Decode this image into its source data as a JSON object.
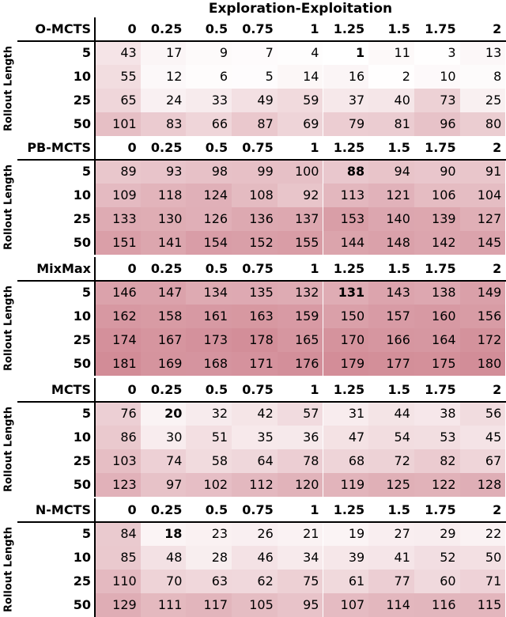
{
  "top_title": "Exploration-Exploitation",
  "y_axis_label": "Rollout Length",
  "chart_data": {
    "type": "heatmap",
    "x_title": "Exploration-Exploitation",
    "y_title": "Rollout Length",
    "columns": [
      "0",
      "0.25",
      "0.5",
      "0.75",
      "1",
      "1.25",
      "1.5",
      "1.75",
      "2"
    ],
    "rows": [
      "5",
      "10",
      "25",
      "50"
    ],
    "color_scale": {
      "min": 1,
      "max": 181,
      "low_color": "#ffffff",
      "high_color": "#d28c97"
    },
    "panels": [
      {
        "name": "O-MCTS",
        "values": [
          [
            43,
            17,
            9,
            7,
            4,
            1,
            11,
            3,
            13
          ],
          [
            55,
            12,
            6,
            5,
            14,
            16,
            2,
            10,
            8
          ],
          [
            65,
            24,
            33,
            49,
            59,
            37,
            40,
            73,
            25
          ],
          [
            101,
            83,
            66,
            87,
            69,
            79,
            81,
            96,
            80
          ]
        ],
        "bold": [
          [
            0,
            5
          ]
        ]
      },
      {
        "name": "PB-MCTS",
        "values": [
          [
            89,
            93,
            98,
            99,
            100,
            88,
            94,
            90,
            91
          ],
          [
            109,
            118,
            124,
            108,
            92,
            113,
            121,
            106,
            104
          ],
          [
            133,
            130,
            126,
            136,
            137,
            153,
            140,
            139,
            127
          ],
          [
            151,
            141,
            154,
            152,
            155,
            144,
            148,
            142,
            145
          ]
        ],
        "bold": [
          [
            0,
            5
          ]
        ]
      },
      {
        "name": "MixMax",
        "values": [
          [
            146,
            147,
            134,
            135,
            132,
            131,
            143,
            138,
            149
          ],
          [
            162,
            158,
            161,
            163,
            159,
            150,
            157,
            160,
            156
          ],
          [
            174,
            167,
            173,
            178,
            165,
            170,
            166,
            164,
            172
          ],
          [
            181,
            169,
            168,
            171,
            176,
            179,
            177,
            175,
            180
          ]
        ],
        "bold": [
          [
            0,
            5
          ]
        ]
      },
      {
        "name": "MCTS",
        "values": [
          [
            76,
            20,
            32,
            42,
            57,
            31,
            44,
            38,
            56
          ],
          [
            86,
            30,
            51,
            35,
            36,
            47,
            54,
            53,
            45
          ],
          [
            103,
            74,
            58,
            64,
            78,
            68,
            72,
            82,
            67
          ],
          [
            123,
            97,
            102,
            112,
            120,
            119,
            125,
            122,
            128
          ]
        ],
        "bold": [
          [
            0,
            1
          ]
        ]
      },
      {
        "name": "N-MCTS",
        "values": [
          [
            84,
            18,
            23,
            26,
            21,
            19,
            27,
            29,
            22
          ],
          [
            85,
            48,
            28,
            46,
            34,
            39,
            41,
            52,
            50
          ],
          [
            110,
            70,
            63,
            62,
            75,
            61,
            77,
            60,
            71
          ],
          [
            129,
            111,
            117,
            105,
            95,
            107,
            114,
            116,
            115
          ]
        ],
        "bold": [
          [
            0,
            1
          ]
        ]
      }
    ]
  }
}
